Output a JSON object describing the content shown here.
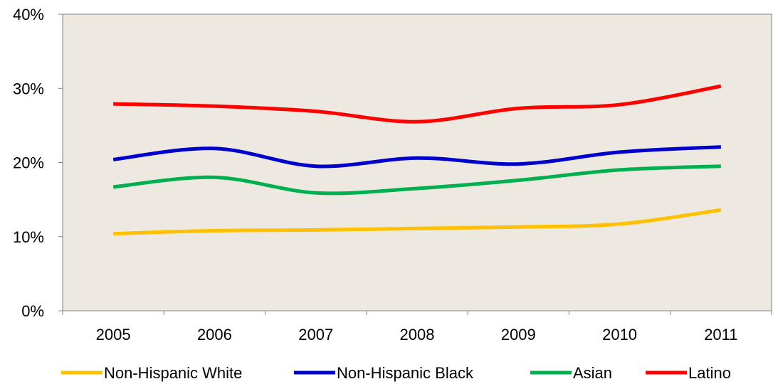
{
  "chart_data": {
    "type": "line",
    "title": "",
    "xlabel": "",
    "ylabel": "",
    "x": [
      "2005",
      "2006",
      "2007",
      "2008",
      "2009",
      "2010",
      "2011"
    ],
    "ylim": [
      0,
      40
    ],
    "y_ticks": [
      {
        "value": 0,
        "label": "0%"
      },
      {
        "value": 10,
        "label": "10%"
      },
      {
        "value": 20,
        "label": "20%"
      },
      {
        "value": 30,
        "label": "30%"
      },
      {
        "value": 40,
        "label": "40%"
      }
    ],
    "grid": false,
    "legend_position": "bottom",
    "plot_background": "#ede9e0",
    "series": [
      {
        "name": "Non-Hispanic White",
        "color": "#ffc000",
        "values": [
          10.4,
          10.8,
          10.9,
          11.1,
          11.3,
          11.7,
          13.6
        ]
      },
      {
        "name": "Non-Hispanic Black",
        "color": "#0000cc",
        "values": [
          20.4,
          21.9,
          19.5,
          20.6,
          19.8,
          21.4,
          22.1
        ]
      },
      {
        "name": "Asian",
        "color": "#00b050",
        "values": [
          16.7,
          18.0,
          15.9,
          16.5,
          17.6,
          19.0,
          19.5
        ]
      },
      {
        "name": "Latino",
        "color": "#ff0000",
        "values": [
          27.9,
          27.6,
          26.9,
          25.5,
          27.3,
          27.8,
          30.3
        ]
      }
    ]
  }
}
